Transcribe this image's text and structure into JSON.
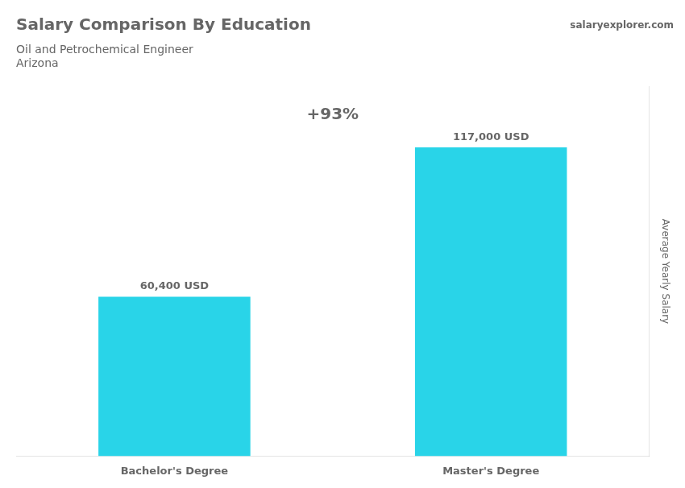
{
  "chart_data": {
    "type": "bar",
    "title": "Salary Comparison By Education",
    "subtitle": "Oil and Petrochemical Engineer",
    "annotations": [
      "Arizona",
      "salaryexplorer.com",
      "+93%"
    ],
    "ylabel": "Average Yearly Salary",
    "categories": [
      "Bachelor's Degree",
      "Master's Degree"
    ],
    "values": [
      60400,
      117000
    ],
    "value_labels": [
      "60,400 USD",
      "117,000 USD"
    ],
    "color": "#29d4e8",
    "ylim": [
      0,
      140000
    ],
    "grid": false,
    "legend": false,
    "data_labels": true,
    "tick_labels": "x"
  }
}
